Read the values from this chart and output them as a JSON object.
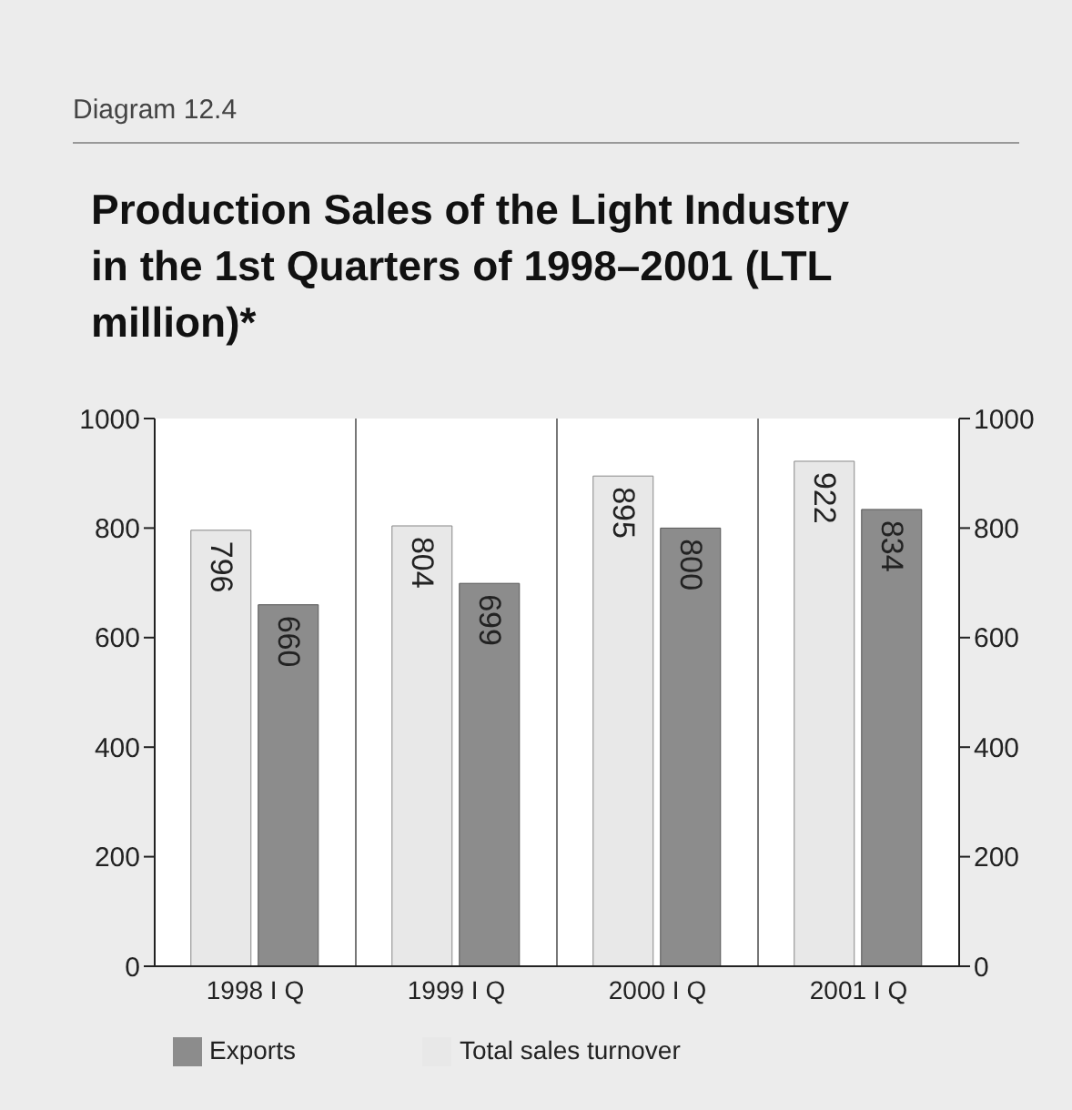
{
  "chart_data": {
    "type": "bar",
    "title": "Production Sales of the Light Industry in the 1st Quarters of 1998–2001 (LTL million)*",
    "annotations": [
      "Diagram 12.4"
    ],
    "categories": [
      "1998 I Q",
      "1999 I Q",
      "2000 I Q",
      "2001 I Q"
    ],
    "series": [
      {
        "name": "Total sales turnover",
        "color": "#e8e8e8",
        "values": [
          796,
          804,
          895,
          922
        ]
      },
      {
        "name": "Exports",
        "color": "#8c8c8c",
        "values": [
          660,
          699,
          800,
          834
        ]
      }
    ],
    "ylim": [
      0,
      1000
    ],
    "yticks": [
      0,
      200,
      400,
      600,
      800,
      1000
    ],
    "y2lim": [
      0,
      1000
    ],
    "y2ticks": [
      0,
      200,
      400,
      600,
      800,
      1000
    ],
    "grid": "x",
    "legend": "bottom left",
    "data_labels": true
  }
}
